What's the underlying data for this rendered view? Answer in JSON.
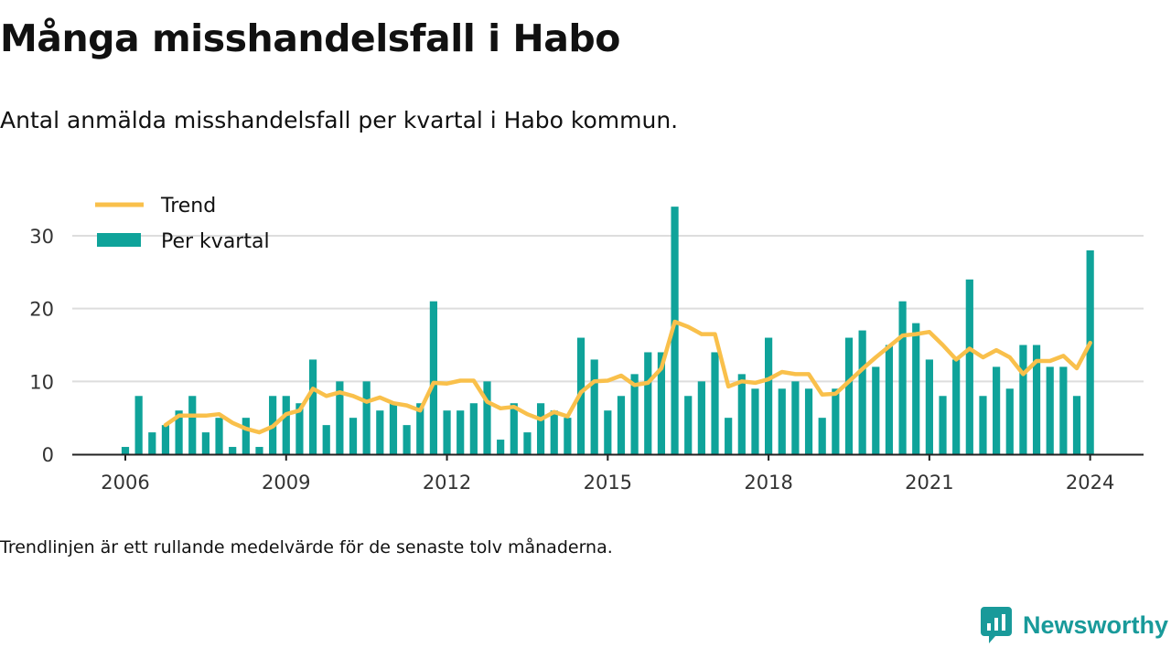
{
  "title": "Många misshandelsfall i Habo",
  "subtitle": "Antal anmälda misshandelsfall per kvartal i Habo kommun.",
  "footnote": "Trendlinjen är ett rullande medelvärde för de senaste tolv månaderna.",
  "brand": {
    "name": "Newsworthy",
    "color": "#199a9a"
  },
  "colors": {
    "bar": "#0fa39a",
    "trend": "#f9c04b",
    "axis": "#222222",
    "grid": "#dddddd"
  },
  "chart_data": {
    "type": "bar",
    "x_type": "quarter",
    "start_quarter": "2006-Q1",
    "ylim": [
      0,
      33
    ],
    "yticks": [
      0,
      10,
      20,
      30
    ],
    "xticks": [
      "2006",
      "2009",
      "2012",
      "2015",
      "2018",
      "2021",
      "2024"
    ],
    "grid": true,
    "legend_position": "top-left",
    "series": [
      {
        "name": "Per kvartal",
        "type": "bar",
        "values": [
          1,
          8,
          3,
          4,
          6,
          8,
          3,
          5,
          1,
          5,
          1,
          8,
          8,
          7,
          13,
          4,
          10,
          5,
          10,
          6,
          7,
          4,
          7,
          21,
          6,
          6,
          7,
          10,
          2,
          7,
          3,
          7,
          6,
          5,
          16,
          13,
          6,
          8,
          11,
          14,
          14,
          34,
          8,
          10,
          14,
          5,
          11,
          9,
          16,
          9,
          10,
          9,
          5,
          9,
          16,
          17,
          12,
          15,
          21,
          18,
          13,
          8,
          13,
          24,
          8,
          12,
          9,
          15,
          15,
          12,
          12,
          8,
          28
        ]
      },
      {
        "name": "Trend",
        "type": "line",
        "values": [
          null,
          null,
          null,
          4.0,
          5.3,
          5.3,
          5.3,
          5.5,
          4.3,
          3.5,
          3.0,
          3.8,
          5.5,
          6.0,
          9.0,
          8.0,
          8.5,
          8.0,
          7.2,
          7.8,
          7.0,
          6.7,
          6.0,
          9.8,
          9.7,
          10.1,
          10.1,
          7.2,
          6.3,
          6.5,
          5.5,
          4.8,
          5.8,
          5.2,
          8.5,
          10.0,
          10.1,
          10.8,
          9.5,
          9.8,
          11.8,
          18.2,
          17.5,
          16.5,
          16.5,
          9.3,
          10.0,
          9.8,
          10.3,
          11.3,
          11.0,
          11.0,
          8.2,
          8.3,
          10.0,
          11.7,
          13.3,
          14.8,
          16.3,
          16.5,
          16.8,
          15.0,
          13.0,
          14.5,
          13.3,
          14.3,
          13.3,
          11.0,
          12.8,
          12.8,
          13.5,
          11.8,
          15.3
        ]
      }
    ]
  }
}
